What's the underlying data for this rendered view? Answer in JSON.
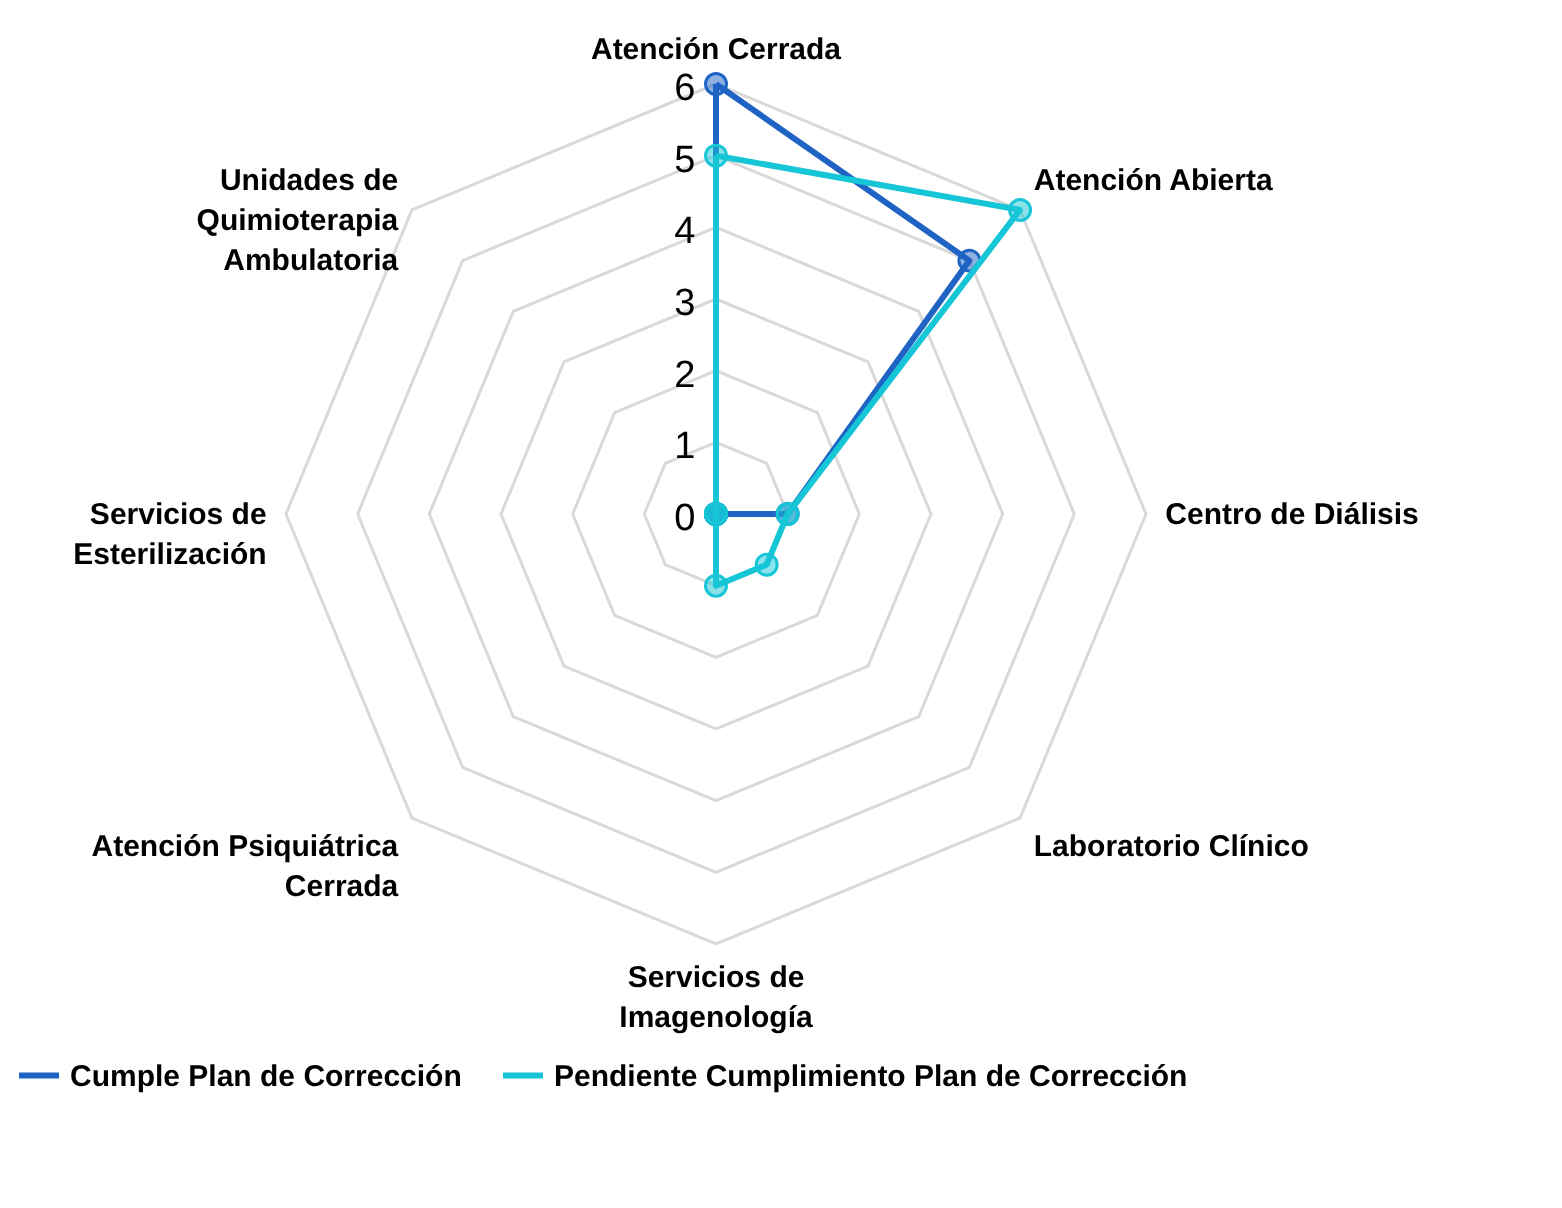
{
  "chart_data": {
    "type": "radar",
    "categories": [
      "Atención Cerrada",
      "Atención Abierta",
      "Centro de Diálisis",
      "Laboratorio Clínico",
      "Servicios de Imagenología",
      "Atención Psiquiátrica Cerrada",
      "Servicios de Esterilización",
      "Unidades de Quimioterapia Ambulatoria"
    ],
    "series": [
      {
        "name": "Cumple Plan de Corrección",
        "color": "#1f64c4",
        "values": [
          6,
          5,
          1,
          0,
          0,
          0,
          0,
          0
        ]
      },
      {
        "name": "Pendiente Cumplimiento Plan de Corrección",
        "color": "#17c6d6",
        "values": [
          5,
          6,
          1,
          1,
          1,
          0,
          0,
          0
        ]
      }
    ],
    "ylim": [
      0,
      6
    ],
    "yticks": [
      0,
      1,
      2,
      3,
      4,
      5,
      6
    ],
    "grid": true,
    "legend": "bottom",
    "marker": "circle",
    "line_style": "solid"
  }
}
